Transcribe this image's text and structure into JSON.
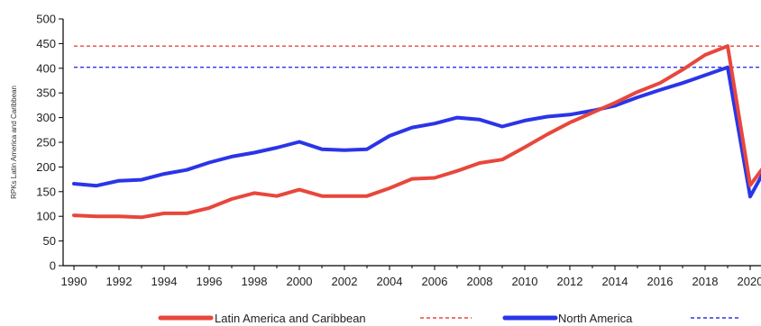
{
  "chart_data": {
    "type": "line",
    "title": "",
    "xlabel": "",
    "ylabel": "RPKs Latin America and Caribbean",
    "ylim": [
      0,
      500
    ],
    "xlim": [
      1990,
      2020
    ],
    "yticks": [
      0,
      50,
      100,
      150,
      200,
      250,
      300,
      350,
      400,
      450,
      500
    ],
    "xticks": [
      1990,
      1992,
      1994,
      1996,
      1998,
      2000,
      2002,
      2004,
      2006,
      2008,
      2010,
      2012,
      2014,
      2016,
      2018,
      2020
    ],
    "xtick_labels": [
      "1990",
      "1992",
      "1994",
      "1996",
      "1998",
      "2000",
      "2002",
      "2004",
      "2006",
      "2008",
      "2010",
      "2012",
      "2014",
      "2016",
      "2018",
      "2020"
    ],
    "grid": false,
    "legend_position": "bottom",
    "series": [
      {
        "name": "Latin America and Caribbean",
        "color": "#e8473c",
        "x": [
          1990,
          1991,
          1992,
          1993,
          1994,
          1995,
          1996,
          1997,
          1998,
          1999,
          2000,
          2001,
          2002,
          2003,
          2004,
          2005,
          2006,
          2007,
          2008,
          2009,
          2010,
          2011,
          2012,
          2013,
          2014,
          2015,
          2016,
          2017,
          2018,
          2019,
          2020,
          2020.6
        ],
        "y": [
          102,
          100,
          100,
          98,
          106,
          106,
          117,
          135,
          147,
          141,
          154,
          141,
          141,
          141,
          157,
          176,
          178,
          192,
          208,
          215,
          240,
          266,
          290,
          310,
          330,
          352,
          370,
          397,
          427,
          445,
          163,
          200
        ]
      },
      {
        "name": "North America",
        "color": "#2a35e8",
        "x": [
          1990,
          1991,
          1992,
          1993,
          1994,
          1995,
          1996,
          1997,
          1998,
          1999,
          2000,
          2001,
          2002,
          2003,
          2004,
          2005,
          2006,
          2007,
          2008,
          2009,
          2010,
          2011,
          2012,
          2013,
          2014,
          2015,
          2016,
          2017,
          2018,
          2019,
          2020,
          2020.6
        ],
        "y": [
          166,
          162,
          172,
          174,
          186,
          194,
          209,
          221,
          229,
          239,
          251,
          236,
          234,
          236,
          263,
          280,
          288,
          300,
          296,
          282,
          294,
          302,
          306,
          314,
          324,
          341,
          356,
          370,
          386,
          402,
          140,
          190
        ]
      }
    ],
    "reference_lines": [
      {
        "series": "Latin America and Caribbean",
        "y": 445,
        "color": "#e8473c",
        "style": "dashed"
      },
      {
        "series": "North America",
        "y": 402,
        "color": "#2a35e8",
        "style": "dashed"
      }
    ]
  }
}
